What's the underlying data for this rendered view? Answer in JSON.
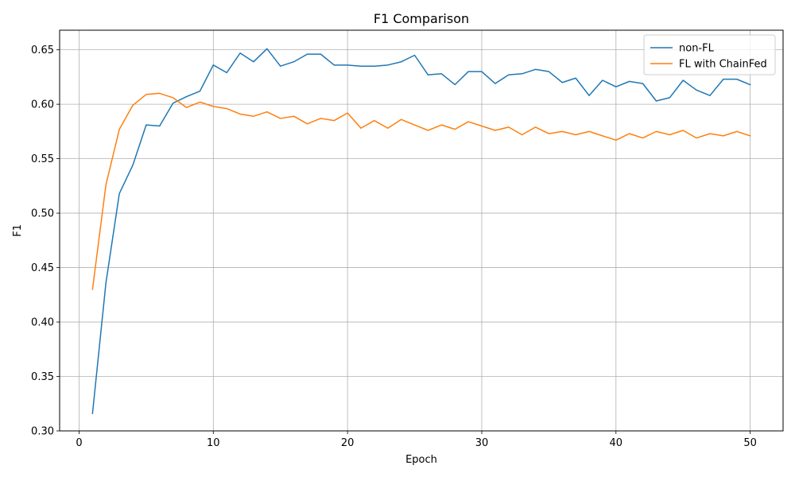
{
  "chart_data": {
    "type": "line",
    "title": "F1 Comparison",
    "xlabel": "Epoch",
    "ylabel": "F1",
    "xlim": [
      -1.45,
      52.45
    ],
    "ylim": [
      0.3,
      0.668
    ],
    "xticks": [
      0,
      10,
      20,
      30,
      40,
      50
    ],
    "yticks": [
      0.3,
      0.35,
      0.4,
      0.45,
      0.5,
      0.55,
      0.6,
      0.65
    ],
    "grid": true,
    "legend_position": "top-right",
    "x": [
      1,
      2,
      3,
      4,
      5,
      6,
      7,
      8,
      9,
      10,
      11,
      12,
      13,
      14,
      15,
      16,
      17,
      18,
      19,
      20,
      21,
      22,
      23,
      24,
      25,
      26,
      27,
      28,
      29,
      30,
      31,
      32,
      33,
      34,
      35,
      36,
      37,
      38,
      39,
      40,
      41,
      42,
      43,
      44,
      45,
      46,
      47,
      48,
      49,
      50
    ],
    "series": [
      {
        "name": "non-FL",
        "color": "#1f77b4",
        "values": [
          0.316,
          0.436,
          0.518,
          0.544,
          0.581,
          0.58,
          0.601,
          0.607,
          0.612,
          0.636,
          0.629,
          0.647,
          0.639,
          0.651,
          0.635,
          0.639,
          0.646,
          0.646,
          0.636,
          0.636,
          0.635,
          0.635,
          0.636,
          0.639,
          0.645,
          0.627,
          0.628,
          0.618,
          0.63,
          0.63,
          0.619,
          0.627,
          0.628,
          0.632,
          0.63,
          0.62,
          0.624,
          0.608,
          0.622,
          0.616,
          0.621,
          0.619,
          0.603,
          0.606,
          0.622,
          0.613,
          0.608,
          0.623,
          0.623,
          0.618
        ]
      },
      {
        "name": "FL with ChainFed",
        "color": "#ff7f0e",
        "values": [
          0.43,
          0.526,
          0.577,
          0.599,
          0.609,
          0.61,
          0.606,
          0.597,
          0.602,
          0.598,
          0.596,
          0.591,
          0.589,
          0.593,
          0.587,
          0.589,
          0.582,
          0.587,
          0.585,
          0.592,
          0.578,
          0.585,
          0.578,
          0.586,
          0.581,
          0.576,
          0.581,
          0.577,
          0.584,
          0.58,
          0.576,
          0.579,
          0.572,
          0.579,
          0.573,
          0.575,
          0.572,
          0.575,
          0.571,
          0.567,
          0.573,
          0.569,
          0.575,
          0.572,
          0.576,
          0.569,
          0.573,
          0.571,
          0.575,
          0.571
        ]
      }
    ]
  }
}
